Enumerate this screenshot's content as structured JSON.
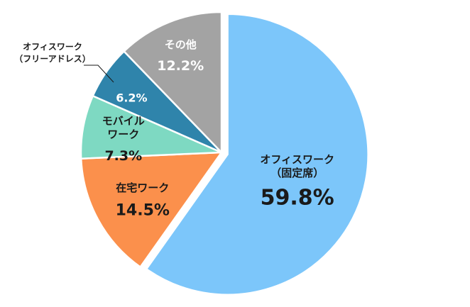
{
  "chart_data": {
    "type": "pie",
    "title": "",
    "categories": [
      "オフィスワーク（固定席）",
      "在宅ワーク",
      "モバイルワーク",
      "オフィスワーク（フリーアドレス）",
      "その他"
    ],
    "values": [
      59.8,
      14.5,
      7.3,
      6.2,
      12.2
    ],
    "value_labels": [
      "59.8%",
      "14.5%",
      "7.3%",
      "6.2%",
      "12.2%"
    ],
    "colors": [
      "#7cc6fa",
      "#fb904c",
      "#7ed9c2",
      "#2f84ab",
      "#a3a3a3"
    ],
    "label_colors": [
      "#1a1a1a",
      "#1a1a1a",
      "#1a1a1a",
      "#ffffff",
      "#ffffff"
    ],
    "exploded_slice": "オフィスワーク（固定席）",
    "slice_order": "clockwise from 12 o'clock",
    "legend": "none",
    "slice_labels": [
      {
        "lines": [
          "オフィスワーク",
          "（固定席）"
        ]
      },
      {
        "lines": [
          "在宅ワーク"
        ]
      },
      {
        "lines": [
          "モバイル",
          "ワーク"
        ]
      },
      {
        "lines": []
      },
      {
        "lines": [
          "その他"
        ]
      }
    ],
    "external_label": {
      "slice_index": 3,
      "lines": [
        "オフィスワーク",
        "（フリーアドレス）"
      ]
    }
  }
}
